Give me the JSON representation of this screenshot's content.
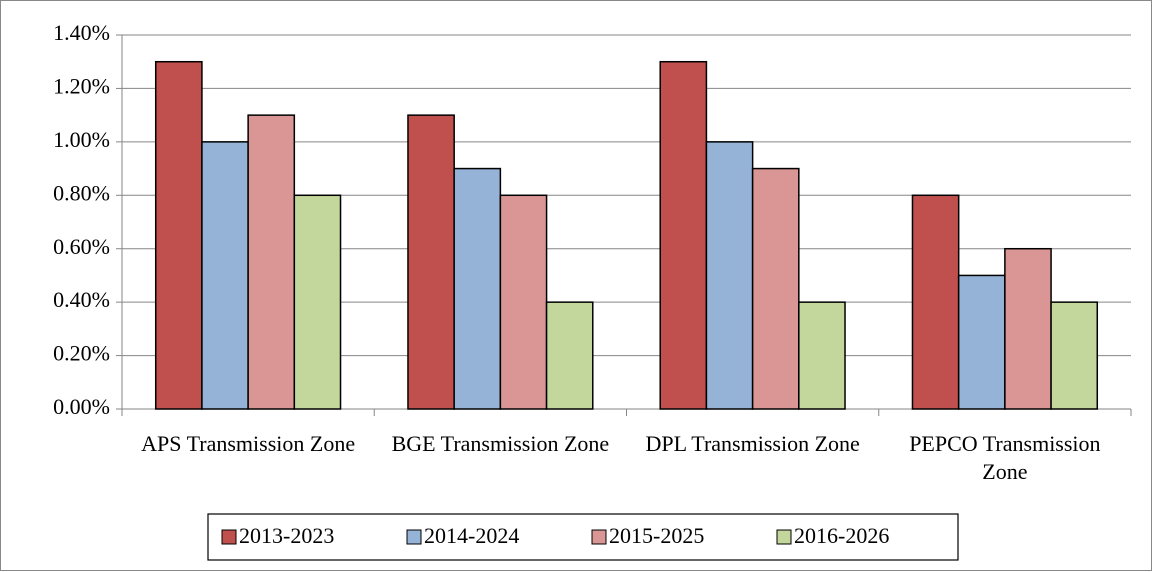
{
  "chart_data": {
    "type": "bar",
    "categories": [
      "APS Transmission Zone",
      "BGE Transmission Zone",
      "DPL Transmission Zone",
      "PEPCO Transmission Zone"
    ],
    "series": [
      {
        "name": "2013-2023",
        "color": "#c0504d",
        "values": [
          1.3,
          1.1,
          1.3,
          0.8
        ]
      },
      {
        "name": "2014-2024",
        "color": "#95b3d7",
        "values": [
          1.0,
          0.9,
          1.0,
          0.5
        ]
      },
      {
        "name": "2015-2025",
        "color": "#d99694",
        "values": [
          1.1,
          0.8,
          0.9,
          0.6
        ]
      },
      {
        "name": "2016-2026",
        "color": "#c3d69b",
        "values": [
          0.8,
          0.4,
          0.4,
          0.4
        ]
      }
    ],
    "ylim": [
      0,
      1.4
    ],
    "yticks": [
      {
        "value": 0,
        "label": "0.00%"
      },
      {
        "value": 0.2,
        "label": "0.20%"
      },
      {
        "value": 0.4,
        "label": "0.40%"
      },
      {
        "value": 0.6,
        "label": "0.60%"
      },
      {
        "value": 0.8,
        "label": "0.80%"
      },
      {
        "value": 1.0,
        "label": "1.00%"
      },
      {
        "value": 1.2,
        "label": "1.20%"
      },
      {
        "value": 1.4,
        "label": "1.40%"
      }
    ],
    "grid": true,
    "legend": "bottom"
  }
}
